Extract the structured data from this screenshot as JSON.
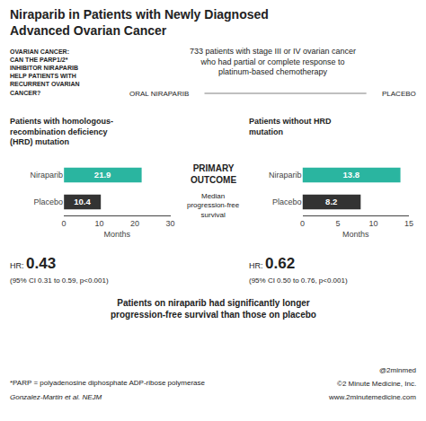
{
  "title": "Niraparib in Patients with Newly Diagnosed\nAdvanced Ovarian Cancer",
  "annotations": [
    "OVARIAN CANCER:\nCAN THE PARP1/2*\nINHIBITOR NIRAPARIB\nHELP PATIENTS WITH\nRECURRENT OVARIAN\nCANCER?",
    "733 patients with stage III or IV ovarian cancer\nwho had partial or complete response to\nplatinum-based chemotherapy",
    "ORAL NIRAPARIB",
    "PLACEBO",
    "PRIMARY\nOUTCOME",
    "Median\nprogression-free\nsurvival",
    "Patients on niraparib had significantly longer\nprogression-free survival than those on placebo",
    "*PARP = polyadenosine diphosphate ADP-ribose polymerase",
    "Gonzalez-Martin et al. NEJM",
    "@2minmed",
    "©2 Minute Medicine, Inc.",
    "www.2minutemedicine.com"
  ],
  "chart_data": [
    {
      "type": "bar",
      "orientation": "horizontal",
      "title": "Patients with homologous-\nrecombination deficiency\n(HRD) mutation",
      "categories": [
        "Placebo",
        "Niraparib"
      ],
      "values": [
        10.4,
        21.9
      ],
      "colors": [
        "#333333",
        "#2ab5a0"
      ],
      "xlim": [
        0,
        30
      ],
      "xticks": [
        0,
        10,
        20,
        30
      ],
      "xlabel": "Months",
      "grid": false,
      "data_labels": true,
      "annotations": [
        "HR:",
        "0.43",
        "(95% CI 0.31 to 0.59, p<0.001)"
      ]
    },
    {
      "type": "bar",
      "orientation": "horizontal",
      "title": "Patients without HRD\nmutation",
      "categories": [
        "Placebo",
        "Niraparib"
      ],
      "values": [
        8.2,
        13.8
      ],
      "colors": [
        "#333333",
        "#2ab5a0"
      ],
      "xlim": [
        0,
        15
      ],
      "xticks": [
        0,
        5,
        10,
        15
      ],
      "xlabel": "Months",
      "grid": false,
      "data_labels": true,
      "annotations": [
        "HR:",
        "0.62",
        "(95% CI 0.50 to 0.76, p<0.001)"
      ]
    }
  ]
}
